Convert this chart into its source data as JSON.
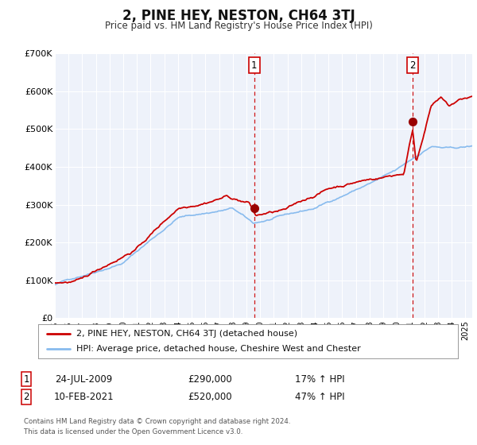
{
  "title": "2, PINE HEY, NESTON, CH64 3TJ",
  "subtitle": "Price paid vs. HM Land Registry's House Price Index (HPI)",
  "title_fontsize": 12,
  "subtitle_fontsize": 9,
  "background_color": "#ffffff",
  "plot_bg_color": "#eef2fa",
  "grid_color": "#ffffff",
  "sale1": {
    "date_num": 2009.56,
    "price": 290000,
    "label": "1",
    "pct": "17% ↑ HPI",
    "date_str": "24-JUL-2009"
  },
  "sale2": {
    "date_num": 2021.12,
    "price": 520000,
    "label": "2",
    "pct": "47% ↑ HPI",
    "date_str": "10-FEB-2021"
  },
  "legend_line1": "2, PINE HEY, NESTON, CH64 3TJ (detached house)",
  "legend_line2": "HPI: Average price, detached house, Cheshire West and Chester",
  "footer1": "Contains HM Land Registry data © Crown copyright and database right 2024.",
  "footer2": "This data is licensed under the Open Government Licence v3.0.",
  "property_color": "#cc0000",
  "hpi_color": "#88bbee",
  "sale_dot_color": "#990000",
  "vline_color": "#cc0000",
  "xmin": 1995,
  "xmax": 2025.5,
  "ymin": 0,
  "ymax": 700000,
  "yticks": [
    0,
    100000,
    200000,
    300000,
    400000,
    500000,
    600000,
    700000
  ],
  "ytick_labels": [
    "£0",
    "£100K",
    "£200K",
    "£300K",
    "£400K",
    "£500K",
    "£600K",
    "£700K"
  ],
  "xticks": [
    1995,
    1996,
    1997,
    1998,
    1999,
    2000,
    2001,
    2002,
    2003,
    2004,
    2005,
    2006,
    2007,
    2008,
    2009,
    2010,
    2011,
    2012,
    2013,
    2014,
    2015,
    2016,
    2017,
    2018,
    2019,
    2020,
    2021,
    2022,
    2023,
    2024,
    2025
  ]
}
